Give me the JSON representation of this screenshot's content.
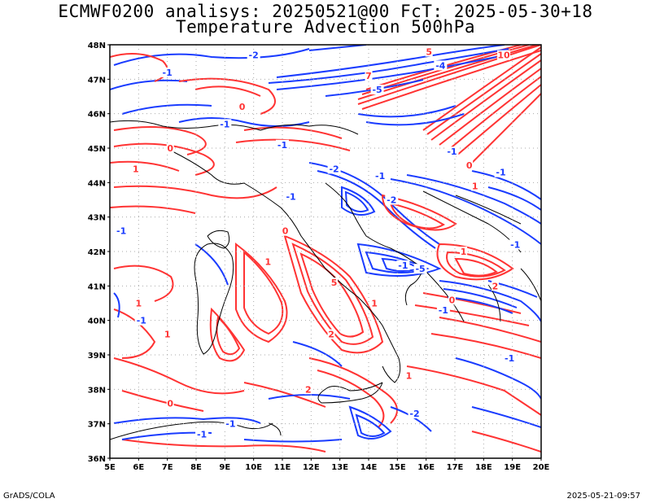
{
  "title_line1": "ECMWF0200 analisys: 20250521@00 FcT: 2025-05-30+18",
  "title_line2": "Temperature Advection 500hPa",
  "lat_labels": [
    "48N",
    "47N",
    "46N",
    "45N",
    "44N",
    "43N",
    "42N",
    "41N",
    "40N",
    "39N",
    "38N",
    "37N",
    "36N"
  ],
  "lon_labels": [
    "5E",
    "6E",
    "7E",
    "8E",
    "9E",
    "10E",
    "11E",
    "12E",
    "13E",
    "14E",
    "15E",
    "16E",
    "17E",
    "18E",
    "19E",
    "20E"
  ],
  "map_extent": {
    "lon": [
      5,
      20
    ],
    "lat": [
      36,
      48
    ]
  },
  "colors": {
    "positive": "#ff3333",
    "negative": "#1a3cff",
    "coast": "#000000",
    "grid": "#aaaaaa"
  },
  "contour_labels": [
    {
      "text": "-1",
      "lon": 7.0,
      "lat": 47.2,
      "sign": "neg"
    },
    {
      "text": "-2",
      "lon": 10.0,
      "lat": 47.7,
      "sign": "neg"
    },
    {
      "text": "7",
      "lon": 14.0,
      "lat": 47.1,
      "sign": "pos"
    },
    {
      "text": "5",
      "lon": 16.1,
      "lat": 47.8,
      "sign": "pos"
    },
    {
      "text": "-4",
      "lon": 16.5,
      "lat": 47.4,
      "sign": "neg"
    },
    {
      "text": "10",
      "lon": 18.7,
      "lat": 47.7,
      "sign": "pos"
    },
    {
      "text": "-5",
      "lon": 14.3,
      "lat": 46.7,
      "sign": "neg"
    },
    {
      "text": "0",
      "lon": 9.6,
      "lat": 46.2,
      "sign": "pos"
    },
    {
      "text": "-1",
      "lon": 9.0,
      "lat": 45.7,
      "sign": "neg"
    },
    {
      "text": "1",
      "lon": 5.9,
      "lat": 44.4,
      "sign": "pos"
    },
    {
      "text": "0",
      "lon": 7.1,
      "lat": 45.0,
      "sign": "pos"
    },
    {
      "text": "-1",
      "lon": 11.0,
      "lat": 45.1,
      "sign": "neg"
    },
    {
      "text": "-1",
      "lon": 11.3,
      "lat": 43.6,
      "sign": "neg"
    },
    {
      "text": "-2",
      "lon": 12.8,
      "lat": 44.4,
      "sign": "neg"
    },
    {
      "text": "-1",
      "lon": 14.4,
      "lat": 44.2,
      "sign": "neg"
    },
    {
      "text": "-2",
      "lon": 14.8,
      "lat": 43.5,
      "sign": "neg"
    },
    {
      "text": "-1",
      "lon": 16.9,
      "lat": 44.9,
      "sign": "neg"
    },
    {
      "text": "0",
      "lon": 17.5,
      "lat": 44.5,
      "sign": "pos"
    },
    {
      "text": "-1",
      "lon": 18.6,
      "lat": 44.3,
      "sign": "neg"
    },
    {
      "text": "1",
      "lon": 17.7,
      "lat": 43.9,
      "sign": "pos"
    },
    {
      "text": "-1",
      "lon": 5.4,
      "lat": 42.6,
      "sign": "neg"
    },
    {
      "text": "0",
      "lon": 11.1,
      "lat": 42.6,
      "sign": "pos"
    },
    {
      "text": "1",
      "lon": 10.5,
      "lat": 41.7,
      "sign": "pos"
    },
    {
      "text": "5",
      "lon": 12.8,
      "lat": 41.1,
      "sign": "pos"
    },
    {
      "text": "-1",
      "lon": 15.2,
      "lat": 41.6,
      "sign": "neg"
    },
    {
      "text": "-5",
      "lon": 15.8,
      "lat": 41.5,
      "sign": "neg"
    },
    {
      "text": "1",
      "lon": 17.3,
      "lat": 42.0,
      "sign": "pos"
    },
    {
      "text": "2",
      "lon": 18.4,
      "lat": 41.0,
      "sign": "pos"
    },
    {
      "text": "-1",
      "lon": 19.1,
      "lat": 42.2,
      "sign": "neg"
    },
    {
      "text": "1",
      "lon": 6.0,
      "lat": 40.5,
      "sign": "pos"
    },
    {
      "text": "-1",
      "lon": 6.1,
      "lat": 40.0,
      "sign": "neg"
    },
    {
      "text": "1",
      "lon": 7.0,
      "lat": 39.6,
      "sign": "pos"
    },
    {
      "text": "2",
      "lon": 12.7,
      "lat": 39.6,
      "sign": "pos"
    },
    {
      "text": "1",
      "lon": 14.2,
      "lat": 40.5,
      "sign": "pos"
    },
    {
      "text": "-1",
      "lon": 16.6,
      "lat": 40.3,
      "sign": "neg"
    },
    {
      "text": "0",
      "lon": 16.9,
      "lat": 40.6,
      "sign": "pos"
    },
    {
      "text": "2",
      "lon": 11.9,
      "lat": 38.0,
      "sign": "pos"
    },
    {
      "text": "1",
      "lon": 15.4,
      "lat": 38.4,
      "sign": "pos"
    },
    {
      "text": "-1",
      "lon": 18.9,
      "lat": 38.9,
      "sign": "neg"
    },
    {
      "text": "0",
      "lon": 7.1,
      "lat": 37.6,
      "sign": "pos"
    },
    {
      "text": "-2",
      "lon": 15.6,
      "lat": 37.3,
      "sign": "neg"
    },
    {
      "text": "-1",
      "lon": 8.2,
      "lat": 36.7,
      "sign": "neg"
    },
    {
      "text": "-1",
      "lon": 9.2,
      "lat": 37.0,
      "sign": "neg"
    }
  ],
  "footer_left": "GrADS/COLA",
  "footer_right": "2025-05-21-09:57"
}
